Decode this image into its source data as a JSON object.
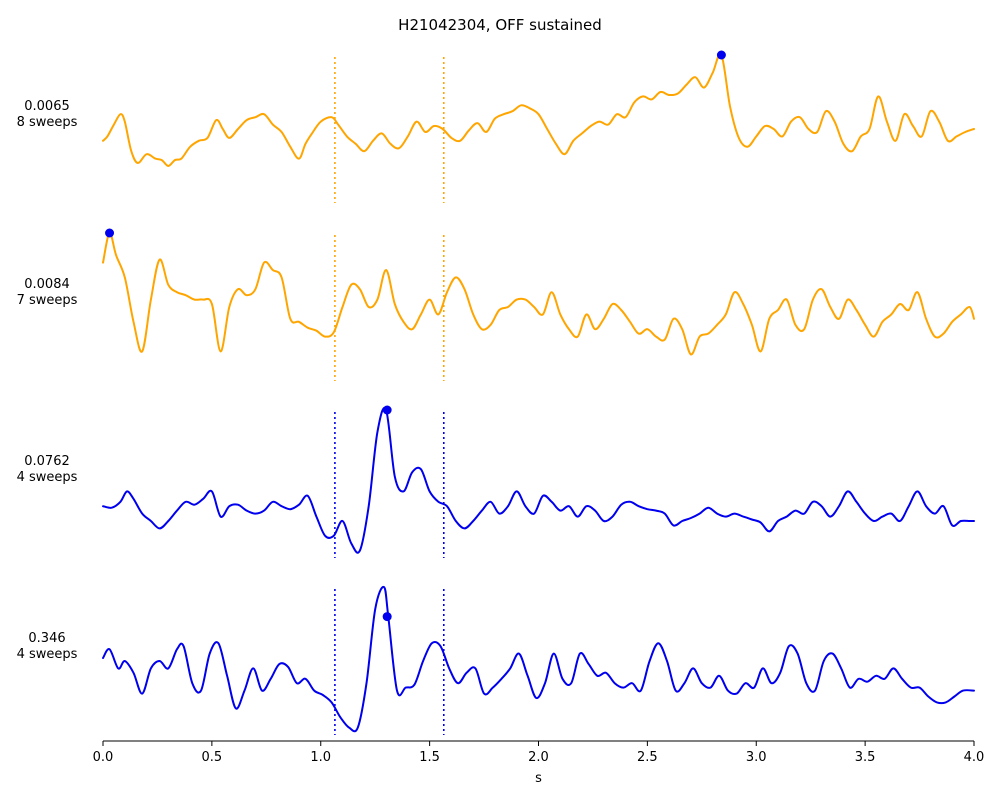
{
  "chart_data": {
    "type": "line",
    "title": "H21042304, OFF sustained",
    "xlabel": "s",
    "ylabel": "",
    "xlim": [
      0.0,
      4.0
    ],
    "xticks": [
      "0.0",
      "0.5",
      "1.0",
      "1.5",
      "2.0",
      "2.5",
      "3.0",
      "3.5",
      "4.0"
    ],
    "marker_x": [
      1.065,
      1.565
    ],
    "grid": false,
    "colors": {
      "orange": "#FFA500",
      "blue": "#0000EE"
    },
    "series": [
      {
        "label_line1": "0.0065",
        "label_line2": "8 sweeps",
        "color": "orange",
        "peak_x": 2.84,
        "x": [
          0.0,
          0.02,
          0.05,
          0.08,
          0.1,
          0.13,
          0.16,
          0.2,
          0.24,
          0.27,
          0.3,
          0.33,
          0.36,
          0.4,
          0.44,
          0.48,
          0.52,
          0.55,
          0.58,
          0.62,
          0.66,
          0.7,
          0.74,
          0.78,
          0.82,
          0.86,
          0.9,
          0.93,
          0.96,
          1.0,
          1.05,
          1.08,
          1.12,
          1.16,
          1.2,
          1.24,
          1.28,
          1.32,
          1.36,
          1.4,
          1.44,
          1.48,
          1.52,
          1.56,
          1.6,
          1.64,
          1.68,
          1.72,
          1.76,
          1.8,
          1.84,
          1.88,
          1.92,
          1.96,
          2.0,
          2.04,
          2.08,
          2.12,
          2.16,
          2.2,
          2.24,
          2.28,
          2.32,
          2.36,
          2.4,
          2.44,
          2.48,
          2.52,
          2.56,
          2.6,
          2.64,
          2.68,
          2.72,
          2.76,
          2.8,
          2.84,
          2.88,
          2.92,
          2.96,
          3.0,
          3.04,
          3.08,
          3.12,
          3.16,
          3.2,
          3.24,
          3.28,
          3.32,
          3.36,
          3.4,
          3.44,
          3.48,
          3.52,
          3.56,
          3.6,
          3.64,
          3.68,
          3.72,
          3.76,
          3.8,
          3.84,
          3.88,
          3.92,
          3.96,
          4.0
        ],
        "y": [
          0.42,
          0.45,
          0.53,
          0.6,
          0.55,
          0.35,
          0.27,
          0.33,
          0.3,
          0.29,
          0.25,
          0.29,
          0.3,
          0.38,
          0.42,
          0.44,
          0.56,
          0.5,
          0.44,
          0.5,
          0.56,
          0.58,
          0.6,
          0.53,
          0.48,
          0.38,
          0.3,
          0.4,
          0.47,
          0.55,
          0.58,
          0.53,
          0.45,
          0.4,
          0.35,
          0.42,
          0.47,
          0.4,
          0.37,
          0.45,
          0.55,
          0.48,
          0.52,
          0.5,
          0.44,
          0.42,
          0.49,
          0.54,
          0.48,
          0.57,
          0.6,
          0.62,
          0.66,
          0.64,
          0.6,
          0.5,
          0.4,
          0.33,
          0.42,
          0.47,
          0.52,
          0.55,
          0.53,
          0.6,
          0.58,
          0.68,
          0.72,
          0.7,
          0.75,
          0.73,
          0.74,
          0.8,
          0.85,
          0.78,
          0.88,
          1.0,
          0.65,
          0.44,
          0.38,
          0.45,
          0.52,
          0.5,
          0.45,
          0.55,
          0.58,
          0.5,
          0.48,
          0.62,
          0.55,
          0.4,
          0.35,
          0.45,
          0.5,
          0.72,
          0.55,
          0.42,
          0.6,
          0.52,
          0.45,
          0.62,
          0.55,
          0.42,
          0.45,
          0.48,
          0.5
        ]
      },
      {
        "label_line1": "0.0084",
        "label_line2": "7 sweeps",
        "color": "orange",
        "peak_x": 0.03,
        "x": [
          0.0,
          0.03,
          0.06,
          0.1,
          0.14,
          0.18,
          0.22,
          0.26,
          0.3,
          0.34,
          0.38,
          0.42,
          0.46,
          0.5,
          0.54,
          0.58,
          0.62,
          0.66,
          0.7,
          0.74,
          0.78,
          0.82,
          0.86,
          0.9,
          0.94,
          0.98,
          1.02,
          1.06,
          1.1,
          1.14,
          1.18,
          1.22,
          1.26,
          1.3,
          1.34,
          1.38,
          1.42,
          1.46,
          1.5,
          1.54,
          1.58,
          1.62,
          1.66,
          1.7,
          1.74,
          1.78,
          1.82,
          1.86,
          1.9,
          1.94,
          1.98,
          2.02,
          2.06,
          2.1,
          2.14,
          2.18,
          2.22,
          2.26,
          2.3,
          2.34,
          2.38,
          2.42,
          2.46,
          2.5,
          2.54,
          2.58,
          2.62,
          2.66,
          2.7,
          2.74,
          2.78,
          2.82,
          2.86,
          2.9,
          2.94,
          2.98,
          3.02,
          3.06,
          3.1,
          3.14,
          3.18,
          3.22,
          3.26,
          3.3,
          3.34,
          3.38,
          3.42,
          3.46,
          3.5,
          3.54,
          3.58,
          3.62,
          3.66,
          3.7,
          3.74,
          3.78,
          3.82,
          3.86,
          3.9,
          3.94,
          3.98,
          4.0
        ],
        "y": [
          0.8,
          1.0,
          0.85,
          0.7,
          0.4,
          0.2,
          0.55,
          0.82,
          0.65,
          0.6,
          0.58,
          0.55,
          0.55,
          0.52,
          0.2,
          0.5,
          0.62,
          0.58,
          0.62,
          0.8,
          0.75,
          0.7,
          0.42,
          0.4,
          0.36,
          0.34,
          0.3,
          0.33,
          0.5,
          0.65,
          0.62,
          0.5,
          0.55,
          0.75,
          0.52,
          0.4,
          0.35,
          0.45,
          0.55,
          0.45,
          0.6,
          0.7,
          0.62,
          0.45,
          0.35,
          0.38,
          0.48,
          0.5,
          0.55,
          0.55,
          0.5,
          0.45,
          0.6,
          0.45,
          0.35,
          0.3,
          0.45,
          0.35,
          0.42,
          0.52,
          0.48,
          0.4,
          0.32,
          0.35,
          0.3,
          0.28,
          0.42,
          0.35,
          0.18,
          0.3,
          0.32,
          0.38,
          0.45,
          0.6,
          0.52,
          0.38,
          0.2,
          0.42,
          0.48,
          0.55,
          0.38,
          0.35,
          0.55,
          0.62,
          0.5,
          0.42,
          0.55,
          0.48,
          0.38,
          0.3,
          0.4,
          0.45,
          0.52,
          0.48,
          0.6,
          0.42,
          0.3,
          0.32,
          0.4,
          0.45,
          0.5,
          0.42
        ]
      },
      {
        "label_line1": "0.0762",
        "label_line2": "4 sweeps",
        "color": "blue",
        "peak_x": 1.305,
        "x": [
          0.0,
          0.04,
          0.08,
          0.11,
          0.14,
          0.18,
          0.22,
          0.26,
          0.3,
          0.34,
          0.38,
          0.42,
          0.46,
          0.5,
          0.54,
          0.58,
          0.62,
          0.66,
          0.7,
          0.74,
          0.78,
          0.82,
          0.86,
          0.9,
          0.94,
          0.98,
          1.02,
          1.06,
          1.1,
          1.14,
          1.18,
          1.22,
          1.26,
          1.3,
          1.34,
          1.38,
          1.42,
          1.46,
          1.5,
          1.54,
          1.58,
          1.62,
          1.66,
          1.7,
          1.74,
          1.78,
          1.82,
          1.86,
          1.9,
          1.94,
          1.98,
          2.02,
          2.06,
          2.1,
          2.14,
          2.18,
          2.22,
          2.26,
          2.3,
          2.34,
          2.38,
          2.42,
          2.46,
          2.5,
          2.54,
          2.58,
          2.62,
          2.66,
          2.7,
          2.74,
          2.78,
          2.82,
          2.86,
          2.9,
          2.94,
          2.98,
          3.02,
          3.06,
          3.1,
          3.14,
          3.18,
          3.22,
          3.26,
          3.3,
          3.34,
          3.38,
          3.42,
          3.46,
          3.5,
          3.54,
          3.58,
          3.62,
          3.66,
          3.7,
          3.74,
          3.78,
          3.82,
          3.86,
          3.9,
          3.94,
          3.98,
          4.0
        ],
        "y": [
          0.35,
          0.34,
          0.38,
          0.45,
          0.4,
          0.3,
          0.25,
          0.2,
          0.25,
          0.32,
          0.38,
          0.36,
          0.4,
          0.45,
          0.28,
          0.35,
          0.36,
          0.32,
          0.3,
          0.32,
          0.38,
          0.35,
          0.33,
          0.36,
          0.42,
          0.28,
          0.15,
          0.15,
          0.25,
          0.1,
          0.05,
          0.35,
          0.85,
          1.0,
          0.55,
          0.45,
          0.58,
          0.6,
          0.45,
          0.38,
          0.35,
          0.25,
          0.2,
          0.25,
          0.32,
          0.38,
          0.3,
          0.35,
          0.45,
          0.35,
          0.3,
          0.42,
          0.38,
          0.32,
          0.35,
          0.28,
          0.35,
          0.32,
          0.25,
          0.28,
          0.36,
          0.38,
          0.35,
          0.33,
          0.32,
          0.3,
          0.22,
          0.25,
          0.27,
          0.3,
          0.34,
          0.3,
          0.28,
          0.3,
          0.28,
          0.26,
          0.24,
          0.18,
          0.25,
          0.28,
          0.32,
          0.3,
          0.38,
          0.35,
          0.28,
          0.35,
          0.45,
          0.38,
          0.3,
          0.25,
          0.28,
          0.3,
          0.25,
          0.35,
          0.45,
          0.35,
          0.3,
          0.35,
          0.22,
          0.25,
          0.25,
          0.25
        ]
      },
      {
        "label_line1": "0.346",
        "label_line2": "4 sweeps",
        "color": "blue",
        "peak_x": 1.305,
        "x": [
          0.0,
          0.03,
          0.07,
          0.1,
          0.14,
          0.18,
          0.22,
          0.26,
          0.3,
          0.34,
          0.37,
          0.41,
          0.45,
          0.49,
          0.53,
          0.57,
          0.61,
          0.65,
          0.69,
          0.73,
          0.77,
          0.81,
          0.85,
          0.89,
          0.93,
          0.97,
          1.01,
          1.05,
          1.09,
          1.13,
          1.17,
          1.21,
          1.25,
          1.29,
          1.31,
          1.35,
          1.39,
          1.43,
          1.47,
          1.51,
          1.55,
          1.59,
          1.63,
          1.67,
          1.71,
          1.75,
          1.79,
          1.83,
          1.87,
          1.91,
          1.95,
          1.99,
          2.03,
          2.07,
          2.11,
          2.15,
          2.19,
          2.23,
          2.27,
          2.31,
          2.35,
          2.39,
          2.43,
          2.47,
          2.51,
          2.55,
          2.59,
          2.63,
          2.67,
          2.71,
          2.75,
          2.79,
          2.83,
          2.87,
          2.91,
          2.95,
          2.99,
          3.03,
          3.07,
          3.11,
          3.15,
          3.19,
          3.23,
          3.27,
          3.31,
          3.35,
          3.39,
          3.43,
          3.47,
          3.51,
          3.55,
          3.59,
          3.63,
          3.67,
          3.71,
          3.75,
          3.79,
          3.83,
          3.87,
          3.91,
          3.95,
          4.0
        ],
        "y": [
          0.52,
          0.58,
          0.45,
          0.5,
          0.42,
          0.28,
          0.45,
          0.5,
          0.45,
          0.58,
          0.6,
          0.35,
          0.3,
          0.55,
          0.62,
          0.4,
          0.18,
          0.3,
          0.45,
          0.3,
          0.38,
          0.48,
          0.46,
          0.35,
          0.38,
          0.3,
          0.27,
          0.22,
          0.12,
          0.05,
          0.05,
          0.35,
          0.85,
          1.0,
          0.8,
          0.3,
          0.32,
          0.34,
          0.5,
          0.62,
          0.6,
          0.45,
          0.35,
          0.42,
          0.45,
          0.28,
          0.32,
          0.38,
          0.45,
          0.55,
          0.4,
          0.25,
          0.35,
          0.55,
          0.38,
          0.35,
          0.55,
          0.48,
          0.4,
          0.42,
          0.35,
          0.32,
          0.35,
          0.3,
          0.5,
          0.62,
          0.5,
          0.3,
          0.35,
          0.45,
          0.35,
          0.32,
          0.4,
          0.3,
          0.28,
          0.35,
          0.32,
          0.45,
          0.35,
          0.42,
          0.6,
          0.55,
          0.35,
          0.3,
          0.5,
          0.55,
          0.45,
          0.32,
          0.38,
          0.36,
          0.4,
          0.38,
          0.45,
          0.38,
          0.32,
          0.32,
          0.26,
          0.22,
          0.22,
          0.26,
          0.3,
          0.3
        ]
      }
    ]
  }
}
